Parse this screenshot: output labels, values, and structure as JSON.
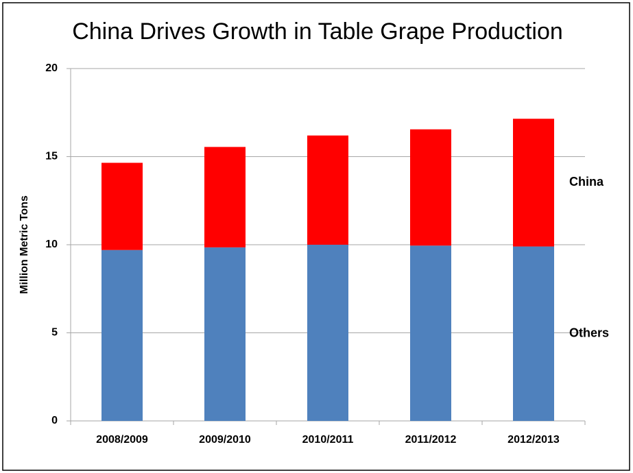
{
  "chart_data": {
    "type": "stacked_bar",
    "title": "China Drives Growth in Table Grape Production",
    "y_label": "Million Metric Tons",
    "categories": [
      "2008/2009",
      "2009/2010",
      "2010/2011",
      "2011/2012",
      "2012/2013"
    ],
    "series": [
      {
        "name": "Others",
        "color": "#4f81bd",
        "values": [
          9.7,
          9.85,
          10.0,
          9.95,
          9.9
        ]
      },
      {
        "name": "China",
        "color": "#ff0000",
        "values": [
          4.95,
          5.7,
          6.2,
          6.6,
          7.25
        ]
      }
    ],
    "ylim": [
      0,
      20
    ],
    "yticks": [
      0,
      5,
      10,
      15,
      20
    ],
    "grid": true
  }
}
